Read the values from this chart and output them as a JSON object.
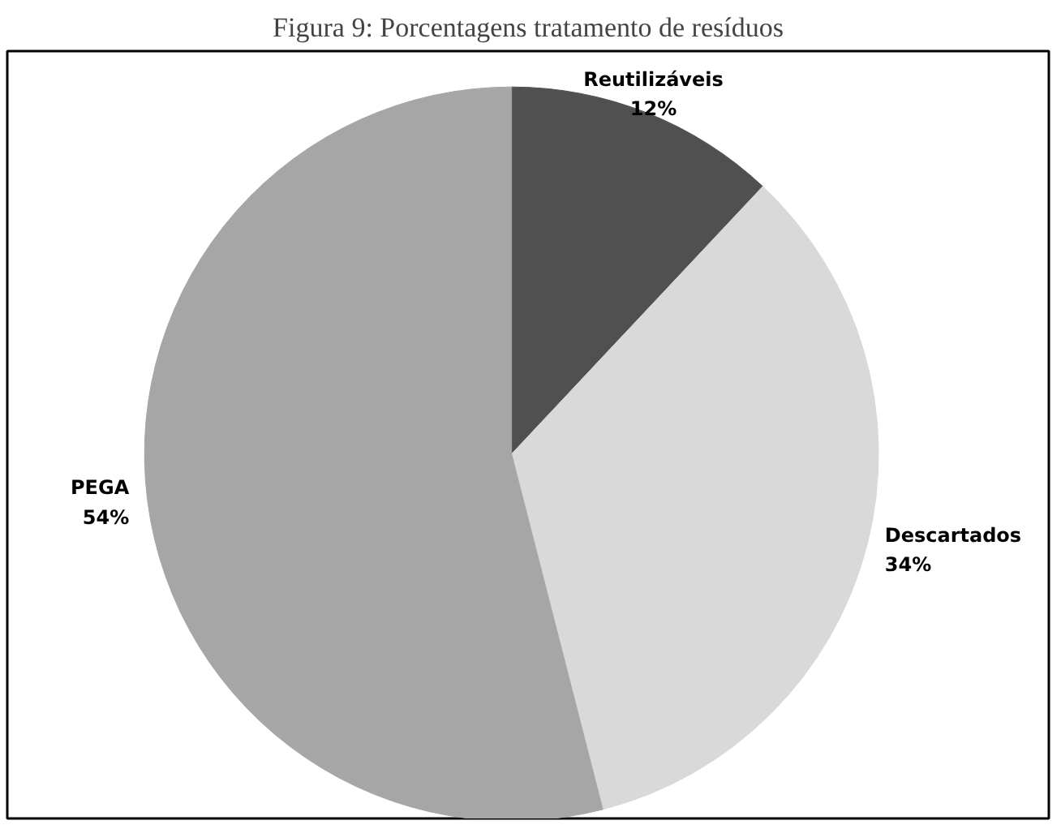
{
  "chart_data": {
    "type": "pie",
    "title": "Figura 9: Porcentagens tratamento de resíduos",
    "categories": [
      "Reutilizáveis",
      "Descartados",
      "PEGA"
    ],
    "values": [
      12,
      34,
      54
    ],
    "value_labels": [
      "12%",
      "34%",
      "54%"
    ],
    "colors": [
      "#505050",
      "#d9d9d9",
      "#a6a6a6"
    ],
    "legend": false
  }
}
